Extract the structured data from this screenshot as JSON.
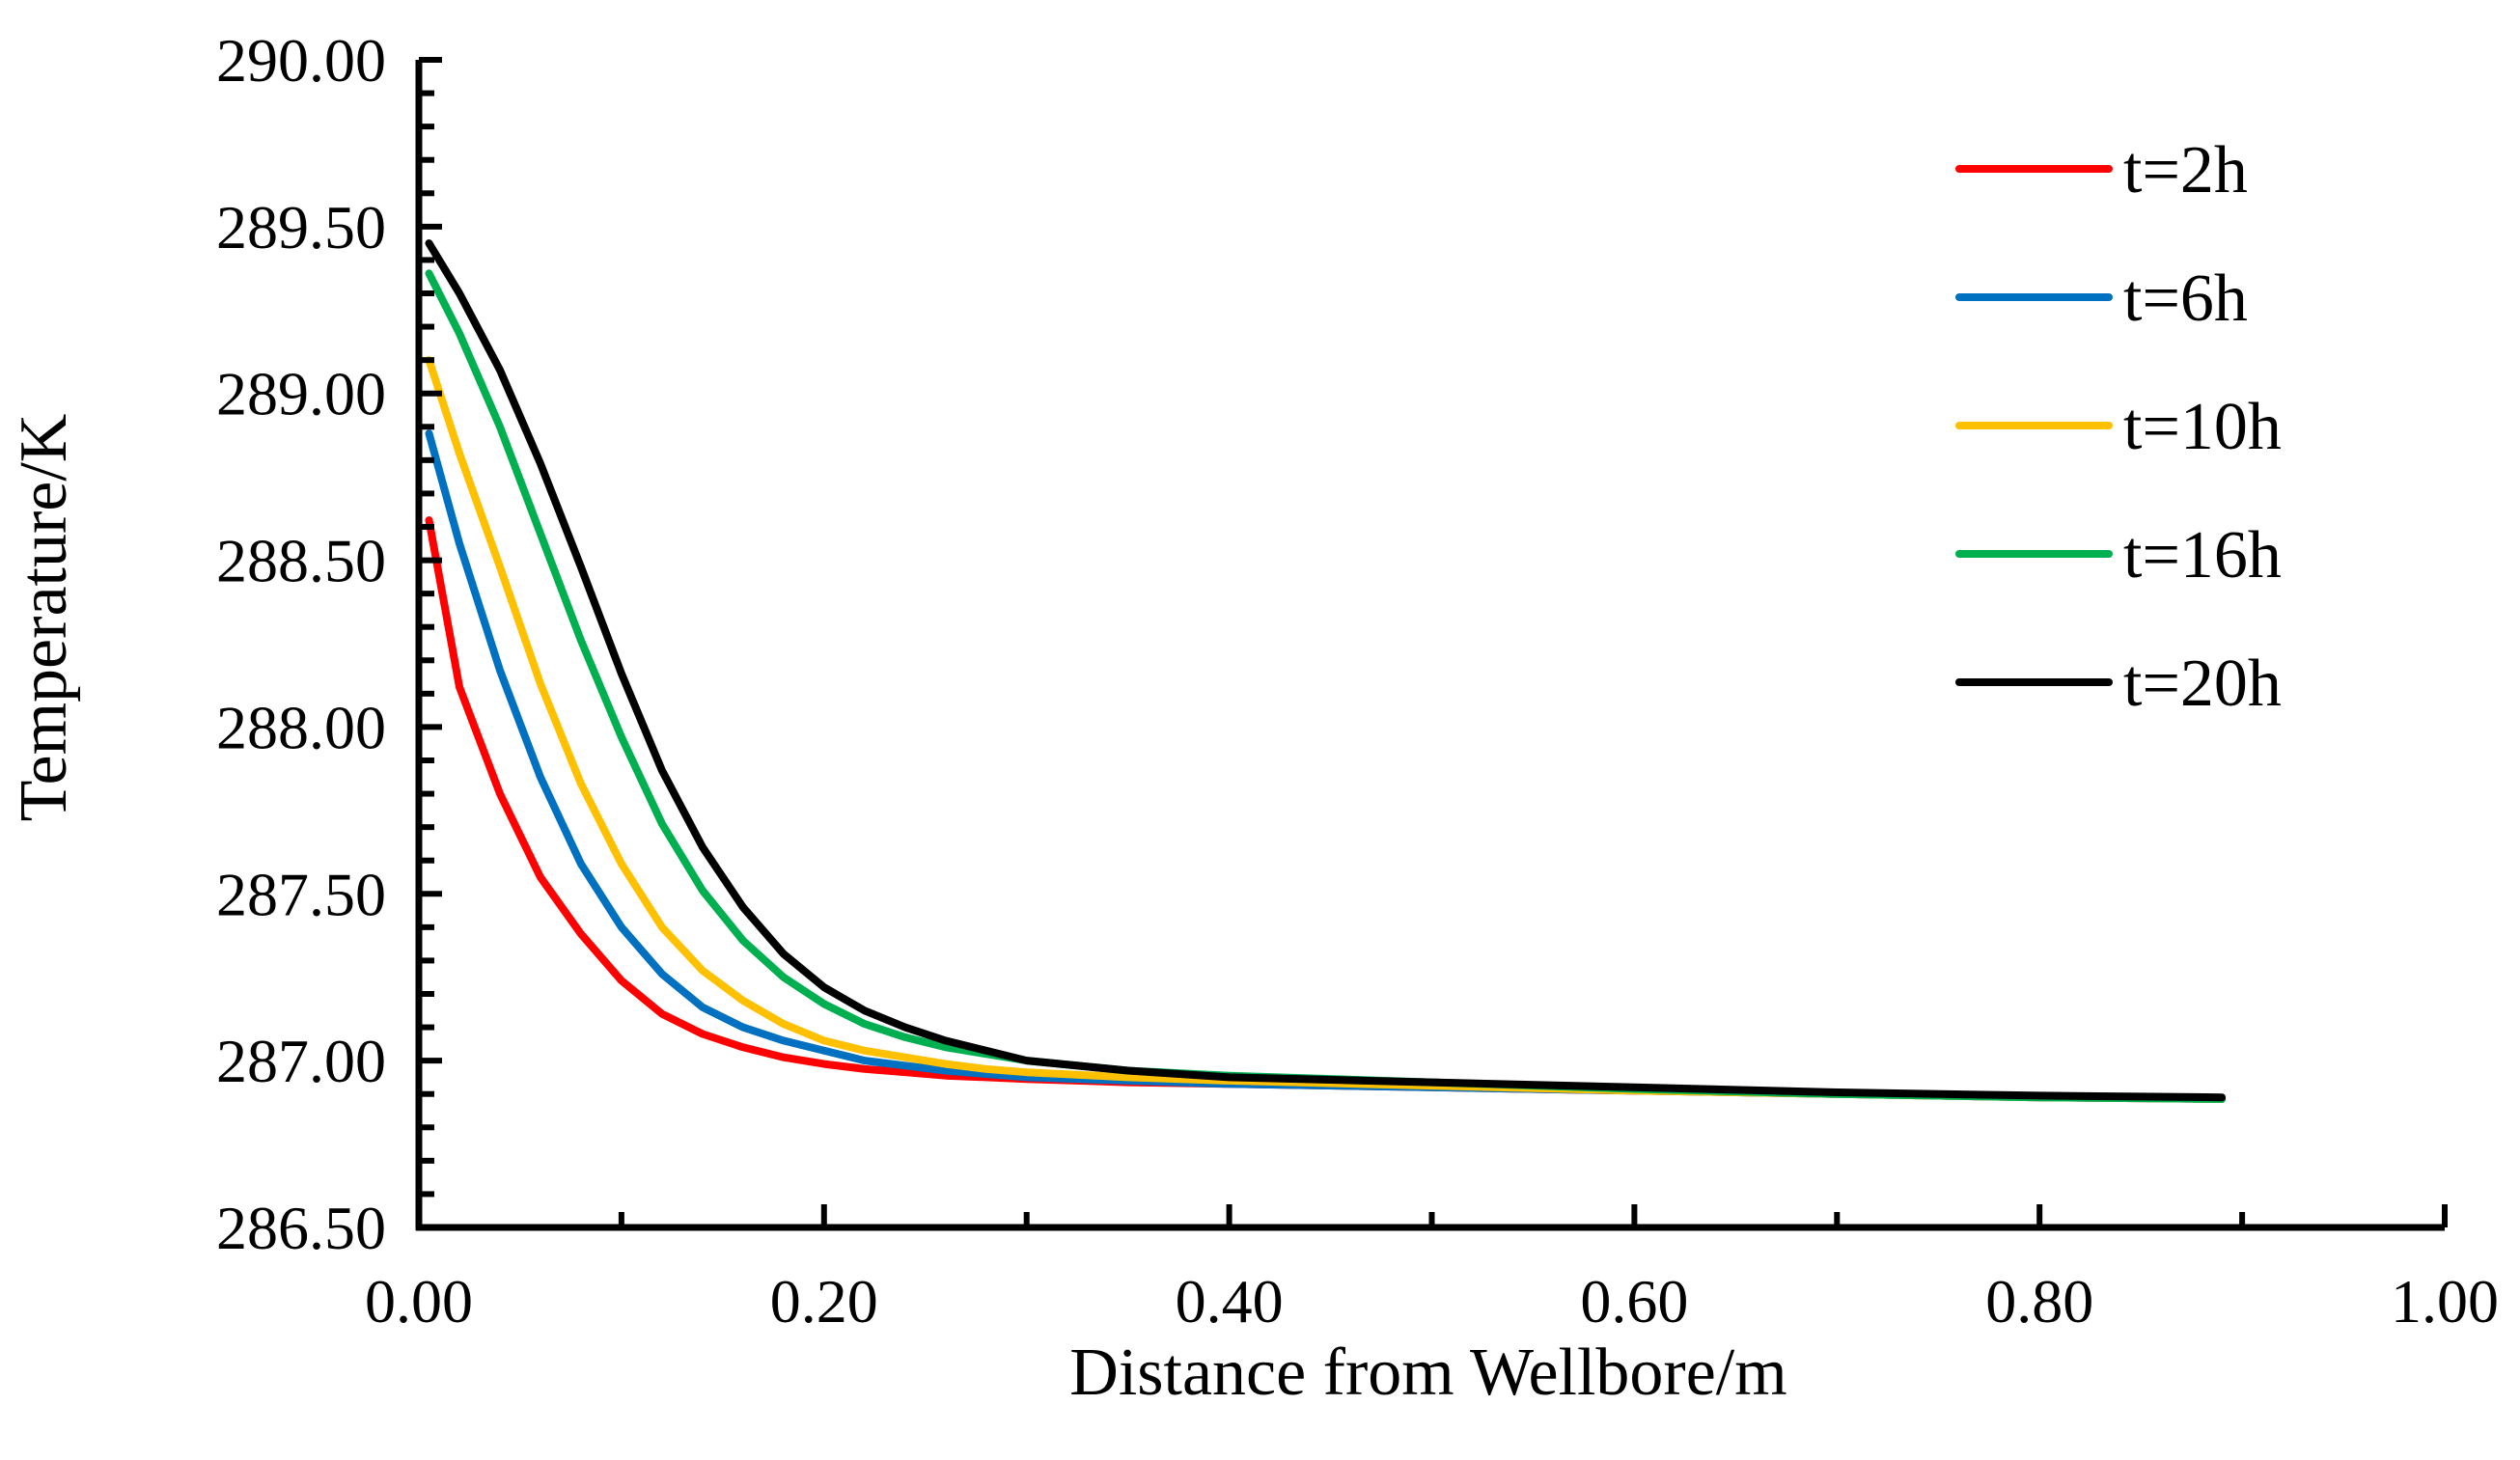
{
  "chart_data": {
    "type": "line",
    "title": "",
    "xlabel": "Distance from Wellbore/m",
    "ylabel": "Temperature/K",
    "xlim": [
      0,
      1
    ],
    "ylim": [
      286.5,
      290
    ],
    "x_major_step": 0.2,
    "y_major_step": 0.5,
    "x_tick_labels": [
      "0.00",
      "0.20",
      "0.40",
      "0.60",
      "0.80",
      "1.00"
    ],
    "y_tick_labels": [
      "286.50",
      "287.00",
      "287.50",
      "288.00",
      "288.50",
      "289.00",
      "289.50",
      "290.00"
    ],
    "grid": false,
    "legend_position": "top-right",
    "x": [
      0.005,
      0.02,
      0.04,
      0.06,
      0.08,
      0.1,
      0.12,
      0.14,
      0.16,
      0.18,
      0.2,
      0.22,
      0.24,
      0.26,
      0.28,
      0.3,
      0.35,
      0.4,
      0.5,
      0.6,
      0.7,
      0.8,
      0.89
    ],
    "series": [
      {
        "name": "t=2h",
        "color": "#ff0000",
        "values": [
          288.62,
          288.12,
          287.8,
          287.55,
          287.38,
          287.24,
          287.14,
          287.08,
          287.04,
          287.01,
          286.99,
          286.975,
          286.965,
          286.955,
          286.95,
          286.945,
          286.935,
          286.93,
          286.92,
          286.91,
          286.9,
          286.89,
          286.885
        ]
      },
      {
        "name": "t=6h",
        "color": "#0070c0",
        "values": [
          288.88,
          288.55,
          288.17,
          287.85,
          287.59,
          287.4,
          287.26,
          287.16,
          287.1,
          287.06,
          287.03,
          287.0,
          286.985,
          286.97,
          286.96,
          286.95,
          286.94,
          286.93,
          286.92,
          286.91,
          286.9,
          286.89,
          286.885
        ]
      },
      {
        "name": "t=10h",
        "color": "#ffc000",
        "values": [
          289.1,
          288.82,
          288.48,
          288.13,
          287.83,
          287.59,
          287.4,
          287.27,
          287.18,
          287.11,
          287.06,
          287.03,
          287.01,
          286.99,
          286.975,
          286.965,
          286.95,
          286.94,
          286.925,
          286.91,
          286.9,
          286.89,
          286.885
        ]
      },
      {
        "name": "t=16h",
        "color": "#00b050",
        "values": [
          289.36,
          289.18,
          288.9,
          288.58,
          288.26,
          287.97,
          287.71,
          287.51,
          287.36,
          287.25,
          287.17,
          287.11,
          287.07,
          287.04,
          287.02,
          287.0,
          286.97,
          286.955,
          286.935,
          286.915,
          286.9,
          286.89,
          286.885
        ]
      },
      {
        "name": "t=20h",
        "color": "#000000",
        "values": [
          289.45,
          289.3,
          289.07,
          288.79,
          288.48,
          288.16,
          287.87,
          287.64,
          287.46,
          287.32,
          287.22,
          287.15,
          287.1,
          287.06,
          287.03,
          287.0,
          286.97,
          286.95,
          286.935,
          286.92,
          286.905,
          286.895,
          286.89
        ]
      }
    ]
  }
}
